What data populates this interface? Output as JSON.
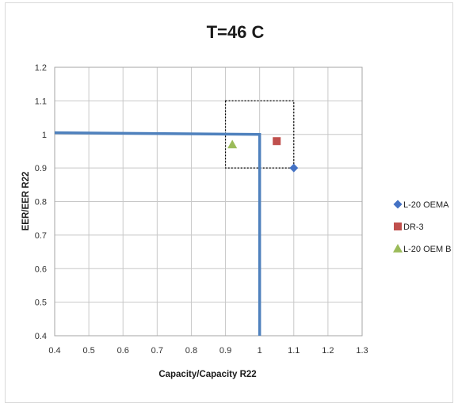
{
  "chart_data": {
    "type": "scatter",
    "title": "T=46 C",
    "xlabel": "Capacity/Capacity R22",
    "ylabel": "EER/EER R22",
    "xlim": [
      0.4,
      1.3
    ],
    "ylim": [
      0.4,
      1.2
    ],
    "x_ticks": [
      "0.4",
      "0.5",
      "0.6",
      "0.7",
      "0.8",
      "0.9",
      "1",
      "1.1",
      "1.2",
      "1.3"
    ],
    "y_ticks": [
      "0.4",
      "0.5",
      "0.6",
      "0.7",
      "0.8",
      "0.9",
      "1",
      "1.1",
      "1.2"
    ],
    "grid": true,
    "legend_position": "right",
    "series": [
      {
        "name": "L-20 OEMA",
        "marker": "diamond",
        "color": "#4472c4",
        "points": [
          {
            "x": 1.1,
            "y": 0.9
          }
        ]
      },
      {
        "name": "DR-3",
        "marker": "square",
        "color": "#c0504d",
        "points": [
          {
            "x": 1.05,
            "y": 0.98
          }
        ]
      },
      {
        "name": "L-20 OEM B",
        "marker": "triangle",
        "color": "#9bbb59",
        "points": [
          {
            "x": 0.92,
            "y": 0.97
          }
        ]
      }
    ],
    "reference_line": {
      "color": "#4f81bd",
      "points": [
        {
          "x": 0.4,
          "y": 1.005
        },
        {
          "x": 1.0,
          "y": 1.0
        },
        {
          "x": 1.0,
          "y": 0.4
        }
      ]
    },
    "target_box": {
      "x_range": [
        0.9,
        1.1
      ],
      "y_range": [
        0.9,
        1.1
      ],
      "style": "dotted"
    }
  }
}
